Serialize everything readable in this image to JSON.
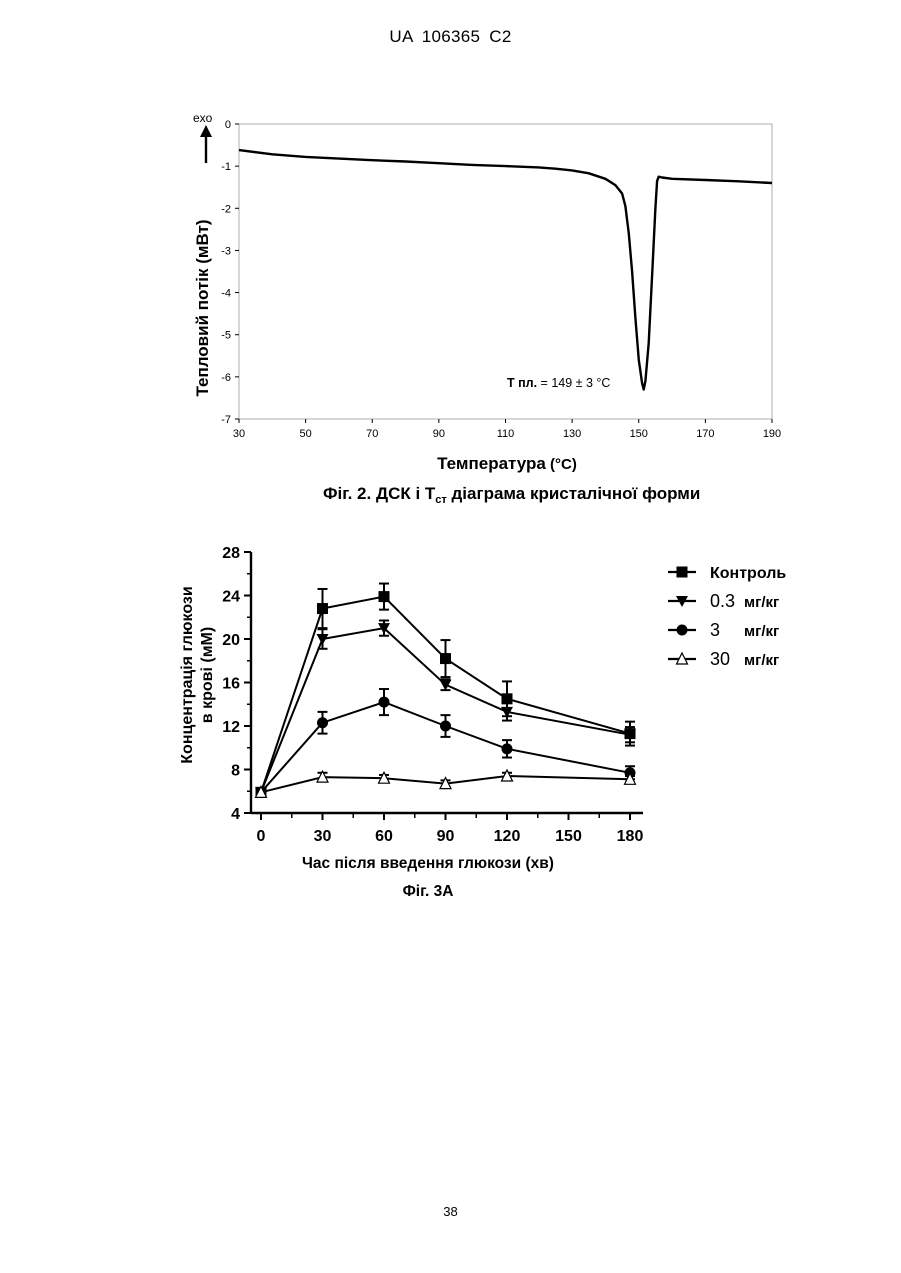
{
  "header": {
    "patent_number": "UA   106365   C2"
  },
  "page_number": "38",
  "figure2": {
    "caption_prefix": "Фіг. 2. ДСК і Т",
    "caption_sub": "ст",
    "caption_suffix": " діаграма кристалічної форми",
    "exo_label": "exo",
    "annotation_bold": "T пл.",
    "annotation_rest": " = 149 ± 3 °C",
    "chart_data": {
      "type": "line",
      "xlabel_bold": "Температура",
      "xlabel_unit": " (°С)",
      "ylabel": "Тепловий  потік (мВт)",
      "xlim": [
        30,
        190
      ],
      "ylim": [
        -7,
        0
      ],
      "x_ticks": [
        30,
        50,
        70,
        90,
        110,
        130,
        150,
        170,
        190
      ],
      "y_ticks": [
        0,
        -1,
        -2,
        -3,
        -4,
        -5,
        -6,
        -7
      ],
      "series": [
        {
          "x": [
            30,
            40,
            50,
            60,
            70,
            80,
            90,
            100,
            110,
            120,
            125,
            130,
            135,
            140,
            143,
            145,
            146,
            147,
            148,
            149,
            150,
            151,
            151.5,
            152,
            153,
            154,
            155,
            155.5,
            156,
            157,
            160,
            170,
            180,
            190
          ],
          "y": [
            -0.62,
            -0.72,
            -0.78,
            -0.82,
            -0.86,
            -0.89,
            -0.93,
            -0.97,
            -1.0,
            -1.03,
            -1.06,
            -1.1,
            -1.17,
            -1.3,
            -1.45,
            -1.65,
            -1.95,
            -2.6,
            -3.5,
            -4.6,
            -5.6,
            -6.15,
            -6.3,
            -6.1,
            -5.2,
            -3.6,
            -2.0,
            -1.35,
            -1.25,
            -1.27,
            -1.3,
            -1.33,
            -1.36,
            -1.4
          ]
        }
      ]
    }
  },
  "figure3a": {
    "caption": "Фіг. 3А",
    "chart_data": {
      "type": "line",
      "xlabel": "Час після введення глюкози (хв)",
      "ylabel_line1": "Концентрація глюкози",
      "ylabel_line2": "в крові (мМ)",
      "xlim": [
        0,
        180
      ],
      "ylim": [
        4,
        28
      ],
      "x_ticks": [
        0,
        30,
        60,
        90,
        120,
        150,
        180
      ],
      "y_ticks": [
        4,
        8,
        12,
        16,
        20,
        24,
        28
      ],
      "x": [
        0,
        30,
        60,
        90,
        120,
        180
      ],
      "series": [
        {
          "name": "Контроль",
          "legend_number": "",
          "legend_unit": "",
          "marker": "square",
          "values": [
            5.9,
            22.8,
            23.9,
            18.2,
            14.5,
            11.3
          ],
          "errors": [
            0.3,
            1.8,
            1.2,
            1.7,
            1.6,
            1.1
          ]
        },
        {
          "name": "",
          "legend_number": "0.3",
          "legend_unit": "мг/кг",
          "marker": "triangle-down",
          "values": [
            5.9,
            20.0,
            21.0,
            15.8,
            13.3,
            11.2
          ],
          "errors": [
            0.3,
            0.9,
            0.7,
            0.5,
            0.8,
            0.7
          ]
        },
        {
          "name": "",
          "legend_number": "3",
          "legend_unit": "мг/кг",
          "marker": "circle",
          "values": [
            5.9,
            12.3,
            14.2,
            12.0,
            9.9,
            7.7
          ],
          "errors": [
            0.3,
            1.0,
            1.2,
            1.0,
            0.8,
            0.6
          ]
        },
        {
          "name": "",
          "legend_number": "30",
          "legend_unit": "мг/кг",
          "marker": "triangle-open",
          "values": [
            5.9,
            7.3,
            7.2,
            6.7,
            7.4,
            7.1
          ],
          "errors": [
            0.2,
            0.4,
            0.3,
            0.3,
            0.3,
            0.3
          ]
        }
      ]
    }
  }
}
